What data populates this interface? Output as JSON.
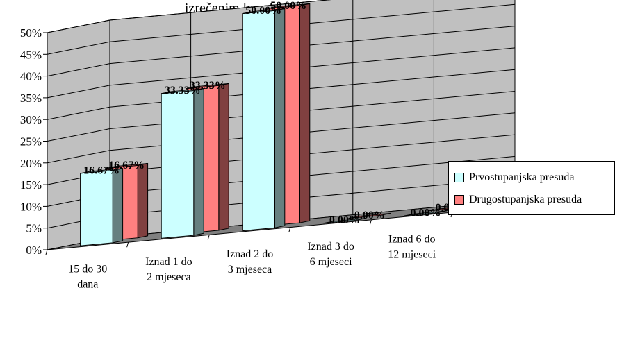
{
  "chart_data": {
    "type": "bar",
    "title": "izrečenim kazni zatvora u uvjetnim osudama",
    "categories": [
      [
        "15 do 30",
        "dana"
      ],
      [
        "Iznad 1 do",
        "2 mjeseca"
      ],
      [
        "Iznad 2 do",
        "3 mjeseca"
      ],
      [
        "Iznad 3 do",
        "6 mjeseci"
      ],
      [
        "Iznad 6 do",
        "12 mjeseci"
      ]
    ],
    "series": [
      {
        "name": "Prvostupanjska presuda",
        "values": [
          16.67,
          33.33,
          50.0,
          0.0,
          0.0
        ],
        "labels": [
          "16.67%",
          "33.33%",
          "50.00%",
          "0.00%",
          "0.00%"
        ],
        "color": "#CCFFFF"
      },
      {
        "name": "Drugostupanjska presuda",
        "values": [
          16.67,
          33.33,
          50.0,
          0.0,
          0.0
        ],
        "labels": [
          "16.67%",
          "33.33%",
          "50.00%",
          "0.00%",
          "0.00%"
        ],
        "color": "#FF8080"
      }
    ],
    "y_ticks": [
      "0%",
      "5%",
      "10%",
      "15%",
      "20%",
      "25%",
      "30%",
      "35%",
      "40%",
      "45%",
      "50%"
    ],
    "ylim": [
      0,
      50
    ],
    "grid": true,
    "legend_position": "right",
    "wall_color": "#C0C0C0",
    "floor_color": "#808080"
  }
}
